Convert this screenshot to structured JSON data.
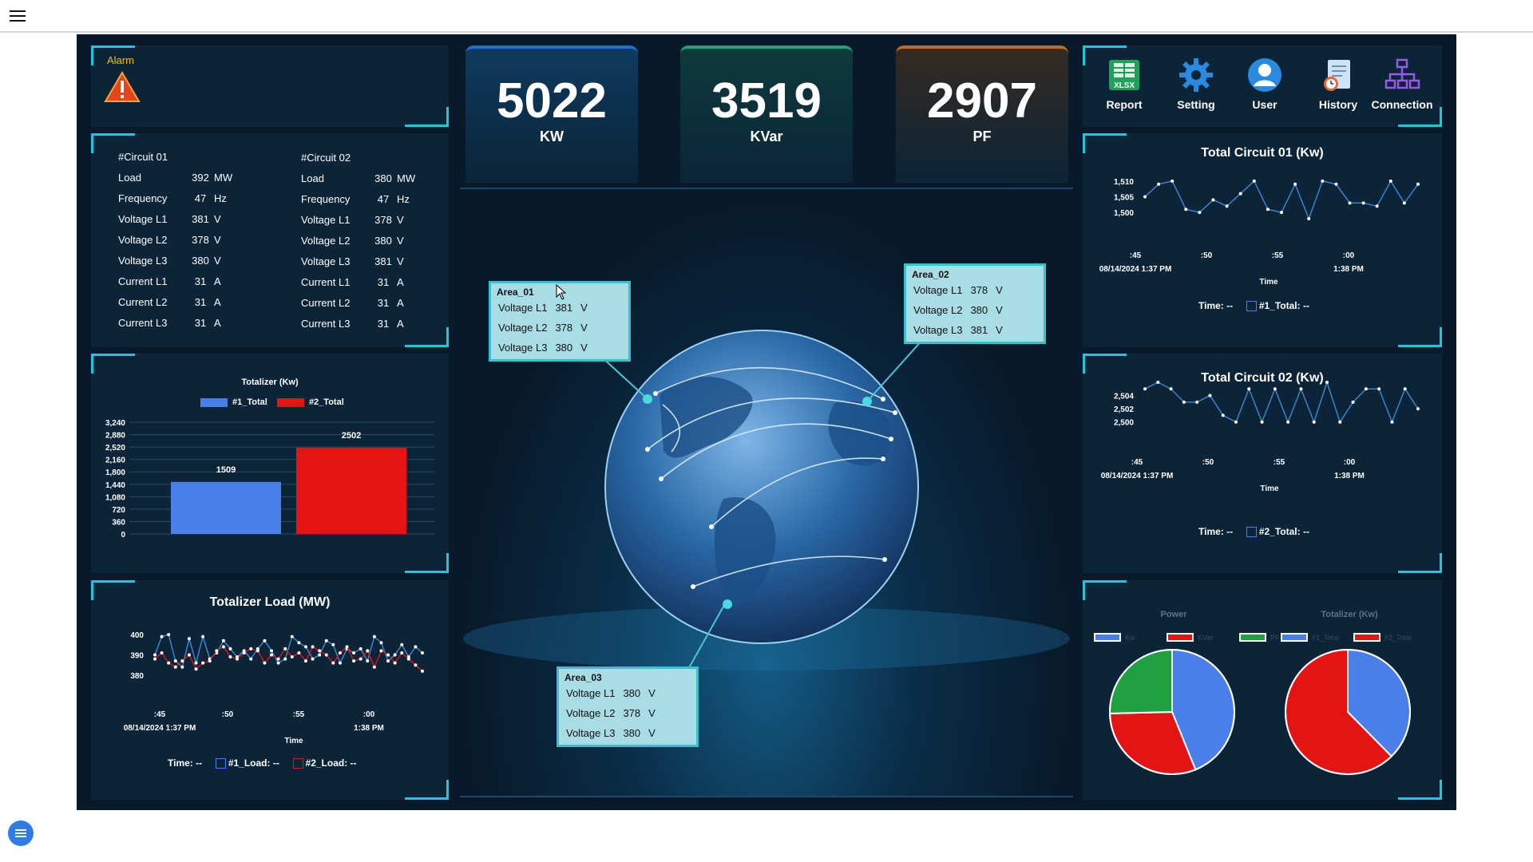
{
  "header": {
    "menu_icon": "hamburger-icon"
  },
  "alarm": {
    "label": "Alarm",
    "icon": "warning-triangle-icon"
  },
  "kpis": [
    {
      "value": "5022",
      "unit": "KW",
      "accent": "#1f6fd6"
    },
    {
      "value": "3519",
      "unit": "KVar",
      "accent": "#1fa37a"
    },
    {
      "value": "2907",
      "unit": "PF",
      "accent": "#c56a22"
    }
  ],
  "toolbar": {
    "report": "Report",
    "setting": "Setting",
    "user": "User",
    "history": "History",
    "connection": "Connection",
    "xlsx": "XLSX"
  },
  "circuits": [
    {
      "title": "#Circuit 01",
      "rows": [
        [
          "Load",
          "392",
          "MW"
        ],
        [
          "Frequency",
          "47",
          "Hz"
        ],
        [
          "Voltage L1",
          "381",
          "V"
        ],
        [
          "Voltage L2",
          "378",
          "V"
        ],
        [
          "Voltage L3",
          "380",
          "V"
        ],
        [
          "Current L1",
          "31",
          "A"
        ],
        [
          "Current L2",
          "31",
          "A"
        ],
        [
          "Current L3",
          "31",
          "A"
        ]
      ]
    },
    {
      "title": "#Circuit 02",
      "rows": [
        [
          "Load",
          "380",
          "MW"
        ],
        [
          "Frequency",
          "47",
          "Hz"
        ],
        [
          "Voltage L1",
          "378",
          "V"
        ],
        [
          "Voltage L2",
          "380",
          "V"
        ],
        [
          "Voltage L3",
          "381",
          "V"
        ],
        [
          "Current L1",
          "31",
          "A"
        ],
        [
          "Current L2",
          "31",
          "A"
        ],
        [
          "Current L3",
          "31",
          "A"
        ]
      ]
    }
  ],
  "areas": [
    {
      "title": "Area_01",
      "rows": [
        [
          "Voltage L1",
          "381",
          "V"
        ],
        [
          "Voltage L2",
          "378",
          "V"
        ],
        [
          "Voltage L3",
          "380",
          "V"
        ]
      ]
    },
    {
      "title": "Area_02",
      "rows": [
        [
          "Voltage L1",
          "378",
          "V"
        ],
        [
          "Voltage L2",
          "380",
          "V"
        ],
        [
          "Voltage L3",
          "381",
          "V"
        ]
      ]
    },
    {
      "title": "Area_03",
      "rows": [
        [
          "Voltage L1",
          "380",
          "V"
        ],
        [
          "Voltage L2",
          "378",
          "V"
        ],
        [
          "Voltage L3",
          "380",
          "V"
        ]
      ]
    }
  ],
  "chart_data": [
    {
      "id": "totalizer-bar",
      "type": "bar",
      "title": "Totalizer (Kw)",
      "series": [
        {
          "name": "#1_Total",
          "values": [
            1509
          ],
          "color": "#4a7ee8"
        },
        {
          "name": "#2_Total",
          "values": [
            2502
          ],
          "color": "#e51414"
        }
      ],
      "yticks": [
        "3,240",
        "2,880",
        "2,520",
        "2,160",
        "1,800",
        "1,440",
        "1,080",
        "720",
        "360",
        "0"
      ],
      "ylim": [
        0,
        3240
      ],
      "data_labels": [
        "1509",
        "2502"
      ],
      "legend": "top"
    },
    {
      "id": "totalizer-load",
      "type": "line",
      "title": "Totalizer Load (MW)",
      "xlabel": "Time",
      "xticks": [
        ":45",
        ":50",
        ":55",
        ":00"
      ],
      "xsub": [
        "08/14/2024 1:37 PM",
        "",
        "",
        "1:38 PM"
      ],
      "yticks": [
        "400",
        "390",
        "380"
      ],
      "ylim": [
        378,
        402
      ],
      "series": [
        {
          "name": "#1_Load",
          "color": "#3d8ad8",
          "values": [
            390,
            399,
            400,
            387,
            384,
            398,
            386,
            399,
            388,
            391,
            397,
            393,
            389,
            392,
            388,
            393,
            397,
            392,
            386,
            388,
            399,
            396,
            394,
            388,
            390,
            397,
            395,
            386,
            393,
            391,
            393,
            387,
            399,
            396,
            387,
            390,
            395,
            389,
            394,
            391
          ]
        },
        {
          "name": "#2_Load",
          "color": "#e51414",
          "values": [
            388,
            391,
            386,
            384,
            387,
            390,
            383,
            386,
            387,
            392,
            394,
            389,
            388,
            391,
            393,
            392,
            386,
            390,
            388,
            393,
            389,
            391,
            387,
            394,
            392,
            390,
            386,
            391,
            394,
            387,
            388,
            392,
            384,
            392,
            390,
            386,
            391,
            388,
            385,
            382
          ]
        }
      ],
      "footer": {
        "time_label": "Time:",
        "time_value": "--",
        "l1": "#1_Load:",
        "v1": "--",
        "l2": "#2_Load:",
        "v2": "--"
      }
    },
    {
      "id": "circuit01",
      "type": "line",
      "title": "Total Circuit 01 (Kw)",
      "xlabel": "Time",
      "xticks": [
        ":45",
        ":50",
        ":55",
        ":00"
      ],
      "xsub": [
        "08/14/2024 1:37 PM",
        "",
        "",
        "1:38 PM"
      ],
      "yticks": [
        "1,510",
        "1,505",
        "1,500"
      ],
      "ylim": [
        1498,
        1512
      ],
      "series": [
        {
          "name": "#1_Total",
          "color": "#3d8ad8",
          "values": [
            1505,
            1509,
            1510,
            1501,
            1500,
            1504,
            1502,
            1506,
            1510,
            1501,
            1500,
            1509,
            1498,
            1510,
            1509,
            1503,
            1503,
            1502,
            1510,
            1503,
            1509
          ]
        }
      ],
      "footer": {
        "time_label": "Time:",
        "time_value": "--",
        "l1": "#1_Total:",
        "v1": "--"
      }
    },
    {
      "id": "circuit02",
      "type": "line",
      "title": "Total Circuit 02 (Kw)",
      "xlabel": "Time",
      "xticks": [
        ":45",
        ":50",
        ":55",
        ":00"
      ],
      "xsub": [
        "08/14/2024 1:37 PM",
        "",
        "",
        "1:38 PM"
      ],
      "yticks": [
        "2,504",
        "2,502",
        "2,500"
      ],
      "ylim": [
        2499,
        2506
      ],
      "series": [
        {
          "name": "#2_Total",
          "color": "#3d8ad8",
          "values": [
            2505,
            2506,
            2505,
            2503,
            2503,
            2504,
            2501,
            2500,
            2505,
            2500,
            2505,
            2500,
            2505,
            2500,
            2506,
            2500,
            2503,
            2505,
            2505,
            2500,
            2505,
            2502
          ]
        }
      ],
      "footer": {
        "time_label": "Time:",
        "time_value": "--",
        "l1": "#2_Total:",
        "v1": "--"
      }
    },
    {
      "id": "power-pie",
      "type": "pie",
      "title": "Power",
      "legend": "top",
      "categories": [
        "Kw",
        "KVar",
        "PF"
      ],
      "values": [
        5022,
        3519,
        2907
      ],
      "colors": [
        "#4a7ee8",
        "#e51414",
        "#1fa142"
      ]
    },
    {
      "id": "totalizer-pie",
      "type": "pie",
      "title": "Totalizer (Kw)",
      "legend": "top",
      "categories": [
        "#1_Total",
        "#2_Total"
      ],
      "values": [
        1509,
        2502
      ],
      "colors": [
        "#4a7ee8",
        "#e51414"
      ]
    }
  ]
}
